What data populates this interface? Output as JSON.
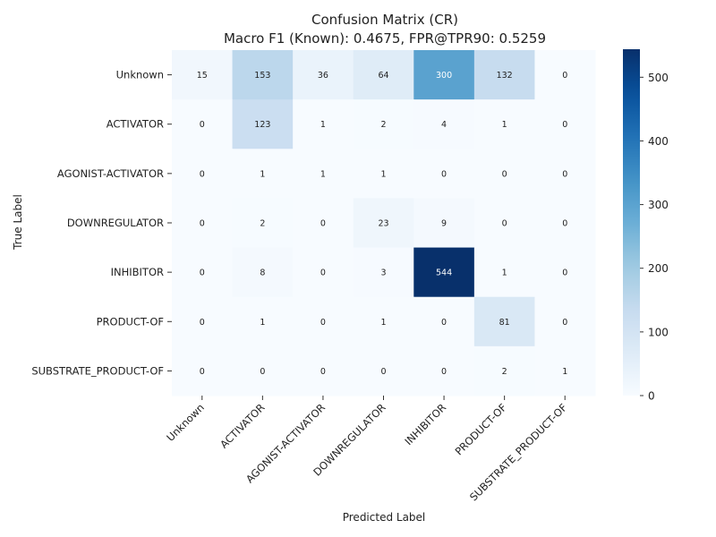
{
  "chart_data": {
    "type": "heatmap",
    "title": "Confusion Matrix (CR)",
    "subtitle": "Macro F1 (Known): 0.4675, FPR@TPR90: 0.5259",
    "xlabel": "Predicted Label",
    "ylabel": "True Label",
    "x_categories": [
      "Unknown",
      "ACTIVATOR",
      "AGONIST-ACTIVATOR",
      "DOWNREGULATOR",
      "INHIBITOR",
      "PRODUCT-OF",
      "SUBSTRATE_PRODUCT-OF"
    ],
    "y_categories": [
      "Unknown",
      "ACTIVATOR",
      "AGONIST-ACTIVATOR",
      "DOWNREGULATOR",
      "INHIBITOR",
      "PRODUCT-OF",
      "SUBSTRATE_PRODUCT-OF"
    ],
    "values": [
      [
        15,
        153,
        36,
        64,
        300,
        132,
        0
      ],
      [
        0,
        123,
        1,
        2,
        4,
        1,
        0
      ],
      [
        0,
        1,
        1,
        1,
        0,
        0,
        0
      ],
      [
        0,
        2,
        0,
        23,
        9,
        0,
        0
      ],
      [
        0,
        8,
        0,
        3,
        544,
        1,
        0
      ],
      [
        0,
        1,
        0,
        1,
        0,
        81,
        0
      ],
      [
        0,
        0,
        0,
        0,
        0,
        2,
        1
      ]
    ],
    "colorbar": {
      "min": 0,
      "max": 544,
      "ticks": [
        0,
        100,
        200,
        300,
        400,
        500
      ]
    },
    "colormap": "Blues",
    "colors": {
      "low": "#f7fbff",
      "high": "#08306b",
      "text_dark": "#222222",
      "text_light": "#ffffff"
    }
  }
}
